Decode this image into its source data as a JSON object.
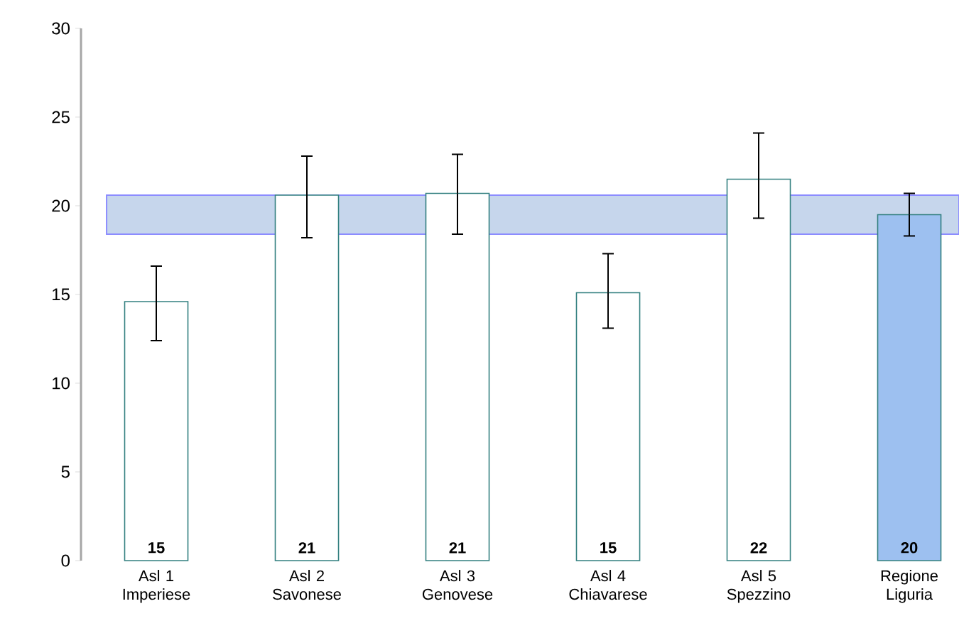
{
  "chart_data": {
    "type": "bar",
    "categories": [
      "Asl 1 Imperiese",
      "Asl 2 Savonese",
      "Asl 3 Genovese",
      "Asl 4 Chiavarese",
      "Asl 5 Spezzino",
      "Regione Liguria"
    ],
    "values": [
      14.6,
      20.6,
      20.7,
      15.1,
      21.5,
      19.5
    ],
    "colors": [
      "#ffffff",
      "#ffffff",
      "#ffffff",
      "#ffffff",
      "#ffffff",
      "#9dc0f0"
    ],
    "errors": [
      [
        12.4,
        16.6
      ],
      [
        18.2,
        22.8
      ],
      [
        18.4,
        22.9
      ],
      [
        13.1,
        17.3
      ],
      [
        19.3,
        24.1
      ],
      [
        18.3,
        20.7
      ]
    ],
    "value_labels": [
      "15",
      "21",
      "21",
      "15",
      "22",
      "20"
    ],
    "bands": [
      {
        "axis": "y",
        "from": 18.4,
        "to": 20.6,
        "color": "#c6d6ec"
      }
    ],
    "ylim": [
      0,
      30
    ],
    "yticks": [
      0,
      5,
      10,
      15,
      20,
      25,
      30
    ],
    "grid": false
  }
}
